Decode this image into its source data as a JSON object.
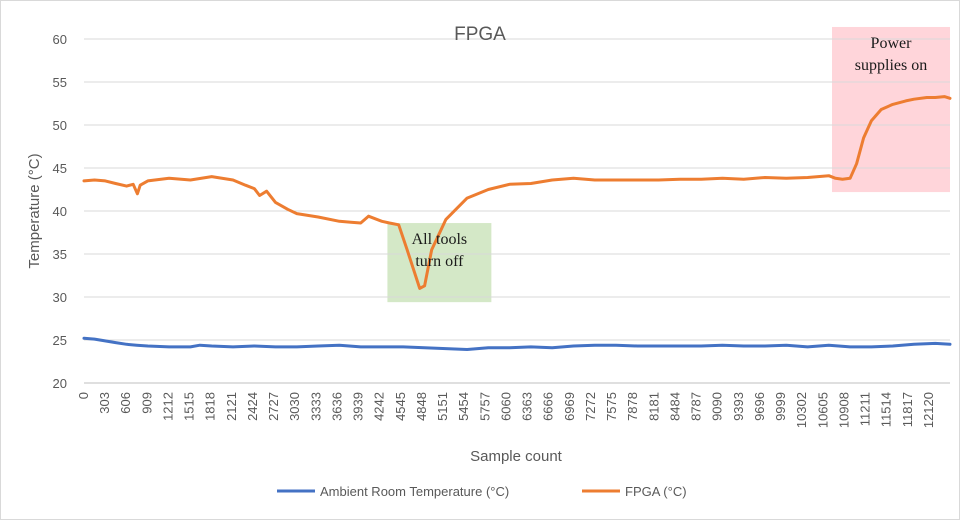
{
  "chart_data": {
    "type": "line",
    "title": "FPGA",
    "xlabel": "Sample count",
    "ylabel": "Temperature (°C)",
    "xlim": [
      0,
      12330
    ],
    "ylim": [
      20,
      60
    ],
    "y_ticks": [
      20,
      25,
      30,
      35,
      40,
      45,
      50,
      55,
      60
    ],
    "x_tick_labels": [
      "0",
      "303",
      "606",
      "909",
      "1212",
      "1515",
      "1818",
      "2121",
      "2424",
      "2727",
      "3030",
      "3333",
      "3636",
      "3939",
      "4242",
      "4545",
      "4848",
      "5151",
      "5454",
      "5757",
      "6060",
      "6363",
      "6666",
      "6969",
      "7272",
      "7575",
      "7878",
      "8181",
      "8484",
      "8787",
      "9090",
      "9393",
      "9696",
      "9999",
      "10302",
      "10605",
      "10908",
      "11211",
      "11514",
      "11817",
      "12120"
    ],
    "grid": "horizontal",
    "legend_position": "bottom",
    "series": [
      {
        "name": "Ambient Room Temperature (°C)",
        "color": "#4472c4",
        "x": [
          0,
          150,
          300,
          450,
          606,
          750,
          909,
          1212,
          1515,
          1650,
          1818,
          2121,
          2424,
          2727,
          3030,
          3333,
          3636,
          3939,
          4242,
          4545,
          4848,
          5151,
          5454,
          5757,
          6060,
          6363,
          6666,
          6969,
          7272,
          7575,
          7878,
          8181,
          8484,
          8787,
          9090,
          9393,
          9696,
          9999,
          10302,
          10605,
          10908,
          11211,
          11514,
          11817,
          12120,
          12330
        ],
        "values": [
          25.2,
          25.1,
          24.9,
          24.7,
          24.5,
          24.4,
          24.3,
          24.2,
          24.2,
          24.4,
          24.3,
          24.2,
          24.3,
          24.2,
          24.2,
          24.3,
          24.4,
          24.2,
          24.2,
          24.2,
          24.1,
          24.0,
          23.9,
          24.1,
          24.1,
          24.2,
          24.1,
          24.3,
          24.4,
          24.4,
          24.3,
          24.3,
          24.3,
          24.3,
          24.4,
          24.3,
          24.3,
          24.4,
          24.2,
          24.4,
          24.2,
          24.2,
          24.3,
          24.5,
          24.6,
          24.5
        ]
      },
      {
        "name": "FPGA (°C)",
        "color": "#ed7d31",
        "x": [
          0,
          150,
          303,
          450,
          606,
          700,
          760,
          800,
          909,
          1212,
          1515,
          1818,
          2121,
          2300,
          2424,
          2500,
          2600,
          2727,
          2900,
          3030,
          3333,
          3636,
          3800,
          3939,
          4050,
          4242,
          4350,
          4480,
          4600,
          4700,
          4780,
          4850,
          4950,
          5151,
          5454,
          5757,
          6060,
          6363,
          6666,
          6969,
          7272,
          7575,
          7878,
          8181,
          8484,
          8787,
          9090,
          9393,
          9696,
          9999,
          10302,
          10605,
          10700,
          10800,
          10908,
          11000,
          11100,
          11211,
          11350,
          11514,
          11700,
          11817,
          12000,
          12120,
          12250,
          12330
        ],
        "values": [
          43.5,
          43.6,
          43.5,
          43.2,
          42.9,
          43.1,
          42.0,
          43.0,
          43.5,
          43.8,
          43.6,
          44.0,
          43.6,
          43.0,
          42.6,
          41.8,
          42.3,
          41.0,
          40.2,
          39.7,
          39.3,
          38.8,
          38.7,
          38.6,
          39.4,
          38.8,
          38.6,
          38.4,
          35.5,
          33.0,
          31.0,
          31.3,
          35.5,
          39.0,
          41.5,
          42.5,
          43.1,
          43.2,
          43.6,
          43.8,
          43.6,
          43.6,
          43.6,
          43.6,
          43.7,
          43.7,
          43.8,
          43.7,
          43.9,
          43.8,
          43.9,
          44.1,
          43.8,
          43.7,
          43.8,
          45.5,
          48.5,
          50.5,
          51.8,
          52.4,
          52.8,
          53.0,
          53.2,
          53.2,
          53.3,
          53.1
        ]
      }
    ],
    "annotations": [
      {
        "lines": [
          "All tools",
          "turn off"
        ],
        "x_range": [
          4320,
          5800
        ],
        "y_range": [
          29.4,
          38.6
        ],
        "color": "#c5e0b4"
      },
      {
        "lines": [
          "Power",
          "supplies on"
        ],
        "x_range": [
          10650,
          12330
        ],
        "y_range": [
          42.2,
          61.4
        ],
        "color": "#ffc7ce"
      }
    ]
  }
}
